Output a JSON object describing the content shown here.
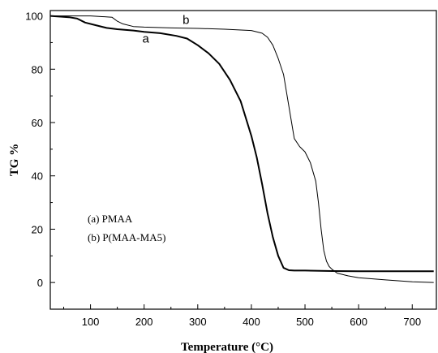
{
  "chart_data": {
    "type": "line",
    "xlabel": "Temperature (°C)",
    "ylabel": "TG %",
    "xlim": [
      25,
      745
    ],
    "ylim": [
      -10,
      102
    ],
    "xticks": [
      100,
      200,
      300,
      400,
      500,
      600,
      700
    ],
    "yticks": [
      0,
      20,
      40,
      60,
      80,
      100
    ],
    "grid": false,
    "legend": {
      "placement": "lower-left",
      "entries": [
        "(a)  PMAA",
        "(b)  P(MAA-MA5)"
      ]
    },
    "series": [
      {
        "name": "a",
        "stroke_width": 2,
        "x": [
          25,
          60,
          75,
          90,
          110,
          130,
          150,
          180,
          200,
          230,
          260,
          280,
          300,
          320,
          340,
          360,
          380,
          400,
          410,
          420,
          430,
          440,
          450,
          460,
          470,
          480,
          500,
          550,
          600,
          650,
          700,
          740
        ],
        "y": [
          100,
          99.5,
          99,
          97.5,
          96.5,
          95.5,
          95,
          94.5,
          94,
          93.5,
          92.5,
          91.5,
          89,
          86,
          82,
          76,
          68,
          55,
          47,
          37,
          26,
          17,
          10,
          5.5,
          4.6,
          4.5,
          4.5,
          4.3,
          4.2,
          4.2,
          4.2,
          4.2
        ]
      },
      {
        "name": "b",
        "stroke_width": 1,
        "x": [
          25,
          100,
          140,
          150,
          160,
          180,
          200,
          250,
          300,
          350,
          400,
          420,
          430,
          440,
          450,
          460,
          465,
          470,
          475,
          480,
          490,
          500,
          510,
          520,
          525,
          530,
          535,
          540,
          545,
          550,
          560,
          580,
          600,
          650,
          700,
          740
        ],
        "y": [
          100,
          100,
          99.5,
          98,
          97,
          96,
          95.8,
          95.5,
          95.3,
          95,
          94.5,
          93.5,
          92,
          89,
          84,
          78,
          72,
          66,
          60,
          54,
          51,
          49,
          45,
          38,
          30,
          20,
          12,
          8,
          6,
          5,
          3.5,
          2.5,
          1.8,
          1,
          0.3,
          0
        ]
      }
    ],
    "curve_labels": [
      {
        "text": "a",
        "x": 203,
        "y": 90
      },
      {
        "text": "b",
        "x": 278,
        "y": 97
      }
    ]
  }
}
